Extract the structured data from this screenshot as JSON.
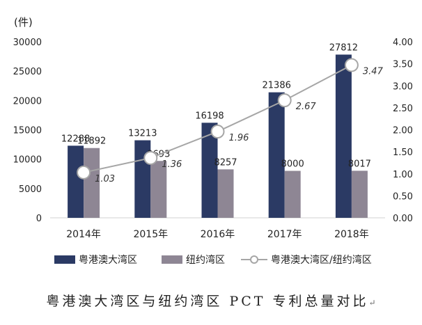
{
  "chart_data": {
    "type": "bar",
    "unit_label": "(件)",
    "categories": [
      "2014年",
      "2015年",
      "2016年",
      "2017年",
      "2018年"
    ],
    "left_axis": {
      "range": [
        0,
        30000
      ],
      "ticks": [
        "0",
        "5000",
        "10000",
        "15000",
        "20000",
        "25000",
        "30000"
      ]
    },
    "right_axis": {
      "range": [
        0,
        4
      ],
      "ticks": [
        "0.00",
        "0.50",
        "1.00",
        "1.50",
        "2.00",
        "2.50",
        "3.00",
        "3.50",
        "4.00"
      ]
    },
    "series": [
      {
        "name": "粤港澳大湾区",
        "kind": "bar",
        "axis": "left",
        "color": "#2b3a64",
        "values": [
          12288,
          13213,
          16198,
          21386,
          27812
        ],
        "labels": [
          "12288",
          "13213",
          "16198",
          "21386",
          "27812"
        ]
      },
      {
        "name": "纽约湾区",
        "kind": "bar",
        "axis": "left",
        "color": "#8e8694",
        "values": [
          11892,
          9693,
          8257,
          8000,
          8017
        ],
        "labels": [
          "11892",
          "9693",
          "8257",
          "8000",
          "8017"
        ]
      },
      {
        "name": "粤港澳大湾区/纽约湾区",
        "kind": "line",
        "axis": "right",
        "color": "#a6a6a6",
        "values": [
          1.03,
          1.36,
          1.96,
          2.67,
          3.47
        ],
        "labels": [
          "1.03",
          "1.36",
          "1.96",
          "2.67",
          "3.47"
        ]
      }
    ],
    "legend_position": "bottom",
    "grid": false
  },
  "caption": "粤港澳大湾区与纽约湾区 PCT 专利总量对比",
  "caption_mark": "↵"
}
